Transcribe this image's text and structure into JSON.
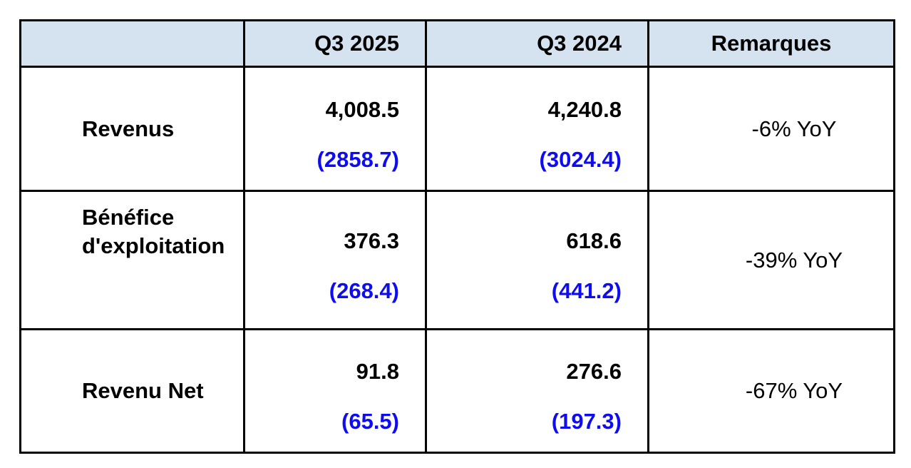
{
  "table": {
    "columns": [
      "",
      "Q3 2025",
      "Q3 2024",
      "Remarques"
    ],
    "rows": [
      {
        "label": "Revenus",
        "current": "4,008.5",
        "current_secondary": "(2858.7)",
        "prior": "4,240.8",
        "prior_secondary": "(3024.4)",
        "remark": "-6% YoY"
      },
      {
        "label": "Bénéfice d'exploitation",
        "current": "376.3",
        "current_secondary": "(268.4)",
        "prior": "618.6",
        "prior_secondary": "(441.2)",
        "remark": "-39% YoY"
      },
      {
        "label": "Revenu Net",
        "current": "91.8",
        "current_secondary": "(65.5)",
        "prior": "276.6",
        "prior_secondary": "(197.3)",
        "remark": "-67% YoY"
      }
    ],
    "colors": {
      "header_bg": "#d5e3f1",
      "secondary_value": "#0d0df0",
      "border": "#000000"
    }
  },
  "chart_data": {
    "type": "table",
    "columns": [
      "",
      "Q3 2025",
      "Q3 2024",
      "Remarques"
    ],
    "rows": [
      {
        "metric": "Revenus",
        "q3_2025": 4008.5,
        "q3_2025_secondary": 2858.7,
        "q3_2024": 4240.8,
        "q3_2024_secondary": 3024.4,
        "remark": "-6% YoY"
      },
      {
        "metric": "Bénéfice d'exploitation",
        "q3_2025": 376.3,
        "q3_2025_secondary": 268.4,
        "q3_2024": 618.6,
        "q3_2024_secondary": 441.2,
        "remark": "-39% YoY"
      },
      {
        "metric": "Revenu Net",
        "q3_2025": 91.8,
        "q3_2025_secondary": 65.5,
        "q3_2024": 276.6,
        "q3_2024_secondary": 197.3,
        "remark": "-67% YoY"
      }
    ]
  }
}
